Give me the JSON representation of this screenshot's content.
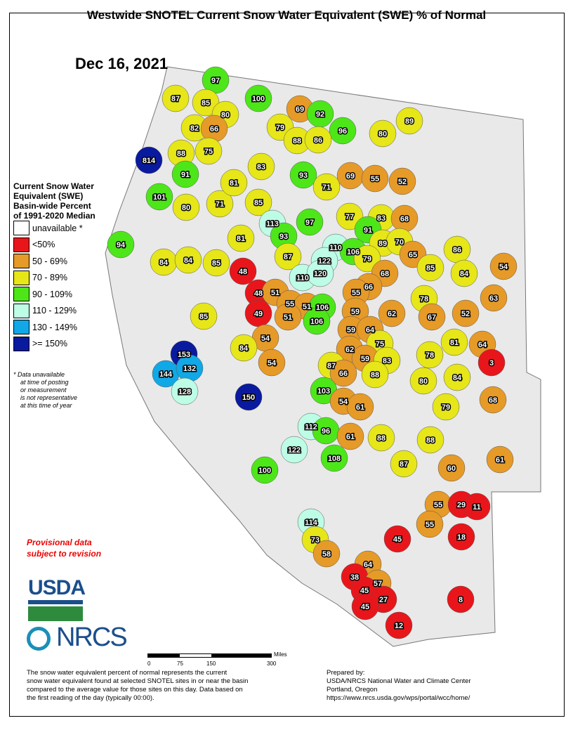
{
  "title": "Westwide SNOTEL Current Snow Water Equivalent (SWE) % of Normal",
  "date": "Dec 16, 2021",
  "legend": {
    "title_lines": [
      "Current Snow Water",
      "Equivalent (SWE)",
      "Basin-wide Percent",
      "of 1991-2020 Median"
    ],
    "items": [
      {
        "label": "unavailable *",
        "color": "#ffffff"
      },
      {
        "label": "<50%",
        "color": "#e8161b"
      },
      {
        "label": "50 - 69%",
        "color": "#e69a27"
      },
      {
        "label": "70 - 89%",
        "color": "#e6e619"
      },
      {
        "label": "90 - 109%",
        "color": "#4de619"
      },
      {
        "label": "110 - 129%",
        "color": "#bdfde6"
      },
      {
        "label": "130 - 149%",
        "color": "#10a8e6"
      },
      {
        "label": ">= 150%",
        "color": "#0a1a9e"
      }
    ],
    "note_lines": [
      "*  Data unavailable",
      "at time of posting",
      "or measurement",
      "is not representative",
      "at this time of year"
    ]
  },
  "provisional": [
    "Provisional data",
    "subject to revision"
  ],
  "logos": {
    "usda": "USDA",
    "nrcs": "NRCS"
  },
  "scale": {
    "ticks": [
      "0",
      "75",
      "150",
      "300"
    ],
    "unit": "Miles"
  },
  "description": [
    "The snow water equivalent percent of normal represents the current",
    "snow water equivalent found at selected SNOTEL sites in or near the basin",
    "compared to the average value for those sites on this day. Data based on",
    "the first reading of the day (typically 00:00)."
  ],
  "prepared": [
    "Prepared by:",
    "USDA/NRCS National Water and Climate Center",
    "Portland, Oregon",
    "https://www.nrcs.usda.gov/wps/portal/wcc/home/"
  ],
  "basin_values": [
    97,
    87,
    85,
    80,
    100,
    69,
    92,
    96,
    80,
    89,
    82,
    66,
    79,
    88,
    86,
    88,
    75,
    83,
    814,
    91,
    93,
    69,
    55,
    52,
    101,
    80,
    71,
    81,
    85,
    71,
    113,
    93,
    97,
    77,
    83,
    68,
    91,
    94,
    84,
    84,
    85,
    81,
    87,
    110,
    122,
    106,
    89,
    70,
    79,
    86,
    65,
    54,
    85,
    84,
    48,
    110,
    120,
    68,
    66,
    48,
    51,
    55,
    78,
    63,
    55,
    51,
    106,
    59,
    62,
    67,
    52,
    49,
    51,
    106,
    85,
    59,
    64,
    75,
    81,
    64,
    54,
    84,
    62,
    59,
    83,
    78,
    3,
    153,
    88,
    80,
    84,
    87,
    66,
    144,
    132,
    54,
    128,
    150,
    103,
    54,
    61,
    79,
    68,
    112,
    96,
    61,
    88,
    88,
    122,
    108,
    87,
    60,
    61,
    100,
    55,
    29,
    11,
    114,
    55,
    45,
    18,
    73,
    58,
    64,
    38,
    57,
    45,
    27,
    45,
    8,
    12
  ]
}
